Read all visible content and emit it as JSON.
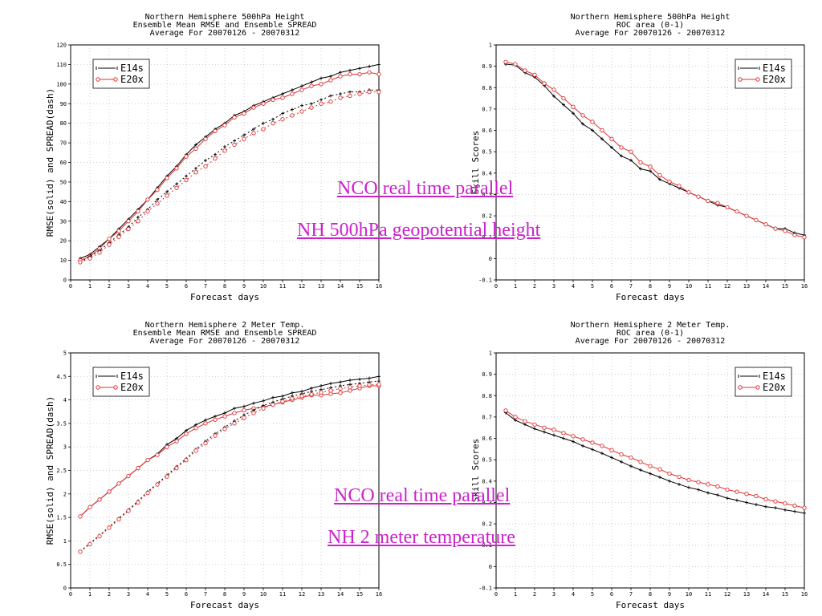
{
  "colors": {
    "e14s": "#000000",
    "e20x": "#e03030",
    "link": "#cc22cc",
    "grid": "#bbbbbb"
  },
  "overlays": {
    "top_line1": "NCO real time parallel",
    "top_line2": "NH 500hPa geopotential height",
    "bottom_line1": "NCO real time parallel",
    "bottom_line2": "NH 2 meter temperature"
  },
  "chart_data": [
    {
      "type": "line",
      "title": [
        "Northern Hemisphere 500hPa Height",
        "Ensemble Mean RMSE and Ensemble SPREAD",
        "Average For 20070126 - 20070312"
      ],
      "xlabel": "Forecast days",
      "ylabel": "RMSE(solid) and SPREAD(dash)",
      "xlim": [
        0,
        16
      ],
      "ylim": [
        0,
        120
      ],
      "xticks": [
        "0",
        "1",
        "2",
        "3",
        "4",
        "5",
        "6",
        "7",
        "8",
        "9",
        "10",
        "11",
        "12",
        "13",
        "14",
        "15",
        "16"
      ],
      "yticks": [
        "0",
        "10",
        "20",
        "30",
        "40",
        "50",
        "60",
        "70",
        "80",
        "90",
        "100",
        "110",
        "120"
      ],
      "grid": true,
      "legend_position": "top-left",
      "x": [
        0.5,
        1,
        1.5,
        2,
        2.5,
        3,
        3.5,
        4,
        4.5,
        5,
        5.5,
        6,
        6.5,
        7,
        7.5,
        8,
        8.5,
        9,
        9.5,
        10,
        10.5,
        11,
        11.5,
        12,
        12.5,
        13,
        13.5,
        14,
        14.5,
        15,
        15.5,
        16
      ],
      "series": [
        {
          "name": "E14s",
          "style": "solid",
          "values": [
            11,
            13,
            17,
            21,
            26,
            31,
            36,
            41,
            47,
            53,
            58,
            64,
            69,
            73,
            77,
            80,
            84,
            86,
            89,
            91,
            93,
            95,
            97,
            99,
            101,
            103,
            104,
            106,
            107,
            108,
            109,
            110
          ]
        },
        {
          "name": "E20x",
          "style": "solid",
          "values": [
            10,
            12,
            16,
            21,
            25,
            30,
            35,
            41,
            46,
            52,
            57,
            63,
            67,
            72,
            76,
            79,
            83,
            85,
            88,
            90,
            92,
            93,
            95,
            97,
            99,
            100,
            102,
            104,
            105,
            105,
            106,
            105
          ]
        },
        {
          "name": "",
          "style": "dash",
          "color_of": "E14s",
          "values": [
            9,
            12,
            15,
            19,
            23,
            27,
            32,
            36,
            41,
            45,
            49,
            53,
            57,
            61,
            64,
            68,
            71,
            74,
            77,
            80,
            82,
            85,
            87,
            89,
            90,
            92,
            94,
            95,
            96,
            96,
            97,
            97
          ]
        },
        {
          "name": "",
          "style": "dash",
          "color_of": "E20x",
          "values": [
            9,
            11,
            14,
            18,
            22,
            26,
            30,
            35,
            39,
            43,
            47,
            51,
            55,
            58,
            62,
            66,
            69,
            72,
            75,
            77,
            80,
            82,
            84,
            86,
            88,
            90,
            91,
            93,
            94,
            95,
            96,
            96
          ]
        }
      ]
    },
    {
      "type": "line",
      "title": [
        "Northern Hemisphere 500hPa Height",
        "ROC area (0-1)",
        "Average For 20070126 - 20070312"
      ],
      "xlabel": "Forecast days",
      "ylabel": "Skill Scores",
      "xlim": [
        0,
        16
      ],
      "ylim": [
        -0.1,
        1
      ],
      "xticks": [
        "0",
        "1",
        "2",
        "3",
        "4",
        "5",
        "6",
        "7",
        "8",
        "9",
        "10",
        "11",
        "12",
        "13",
        "14",
        "15",
        "16"
      ],
      "yticks": [
        "-0.1",
        "0",
        "0.1",
        "0.2",
        "0.3",
        "0.4",
        "0.5",
        "0.6",
        "0.7",
        "0.8",
        "0.9",
        "1"
      ],
      "grid": true,
      "legend_position": "top-right",
      "x": [
        0.5,
        1,
        1.5,
        2,
        2.5,
        3,
        3.5,
        4,
        4.5,
        5,
        5.5,
        6,
        6.5,
        7,
        7.5,
        8,
        8.5,
        9,
        9.5,
        10,
        10.5,
        11,
        11.5,
        12,
        12.5,
        13,
        13.5,
        14,
        14.5,
        15,
        15.5,
        16
      ],
      "series": [
        {
          "name": "E14s",
          "style": "solid",
          "values": [
            0.91,
            0.905,
            0.87,
            0.85,
            0.81,
            0.76,
            0.72,
            0.68,
            0.63,
            0.6,
            0.56,
            0.52,
            0.48,
            0.46,
            0.42,
            0.41,
            0.37,
            0.35,
            0.33,
            0.31,
            0.29,
            0.27,
            0.25,
            0.24,
            0.22,
            0.2,
            0.18,
            0.16,
            0.14,
            0.14,
            0.12,
            0.11
          ]
        },
        {
          "name": "E20x",
          "style": "solid",
          "values": [
            0.92,
            0.91,
            0.88,
            0.86,
            0.82,
            0.79,
            0.75,
            0.71,
            0.67,
            0.64,
            0.6,
            0.56,
            0.52,
            0.5,
            0.45,
            0.43,
            0.39,
            0.36,
            0.34,
            0.31,
            0.29,
            0.27,
            0.26,
            0.24,
            0.22,
            0.2,
            0.18,
            0.16,
            0.14,
            0.13,
            0.11,
            0.1
          ]
        }
      ]
    },
    {
      "type": "line",
      "title": [
        "Northern Hemisphere 2 Meter Temp.",
        "Ensemble Mean RMSE and Ensemble SPREAD",
        "Average For 20070126 - 20070312"
      ],
      "xlabel": "Forecast days",
      "ylabel": "RMSE(solid) and SPREAD(dash)",
      "xlim": [
        0,
        16
      ],
      "ylim": [
        0,
        5
      ],
      "xticks": [
        "0",
        "1",
        "2",
        "3",
        "4",
        "5",
        "6",
        "7",
        "8",
        "9",
        "10",
        "11",
        "12",
        "13",
        "14",
        "15",
        "16"
      ],
      "yticks": [
        "0",
        "0.5",
        "1",
        "1.5",
        "2",
        "2.5",
        "3",
        "3.5",
        "4",
        "4.5",
        "5"
      ],
      "grid": true,
      "legend_position": "top-left",
      "x": [
        0.5,
        1,
        1.5,
        2,
        2.5,
        3,
        3.5,
        4,
        4.5,
        5,
        5.5,
        6,
        6.5,
        7,
        7.5,
        8,
        8.5,
        9,
        9.5,
        10,
        10.5,
        11,
        11.5,
        12,
        12.5,
        13,
        13.5,
        14,
        14.5,
        15,
        15.5,
        16
      ],
      "series": [
        {
          "name": "E14s",
          "style": "solid",
          "values": [
            1.52,
            1.72,
            1.88,
            2.05,
            2.22,
            2.38,
            2.55,
            2.72,
            2.85,
            3.05,
            3.18,
            3.35,
            3.47,
            3.57,
            3.65,
            3.72,
            3.82,
            3.86,
            3.93,
            3.98,
            4.05,
            4.08,
            4.15,
            4.18,
            4.25,
            4.3,
            4.35,
            4.38,
            4.42,
            4.44,
            4.46,
            4.5
          ]
        },
        {
          "name": "E20x",
          "style": "solid",
          "values": [
            1.52,
            1.72,
            1.88,
            2.05,
            2.22,
            2.38,
            2.55,
            2.72,
            2.83,
            3.0,
            3.12,
            3.28,
            3.4,
            3.5,
            3.58,
            3.65,
            3.72,
            3.78,
            3.82,
            3.85,
            3.9,
            3.95,
            4.0,
            4.05,
            4.1,
            4.1,
            4.13,
            4.15,
            4.2,
            4.25,
            4.3,
            4.3
          ]
        },
        {
          "name": "",
          "style": "dash",
          "color_of": "E14s",
          "values": [
            0.78,
            0.95,
            1.12,
            1.3,
            1.48,
            1.66,
            1.85,
            2.05,
            2.22,
            2.4,
            2.58,
            2.75,
            2.95,
            3.12,
            3.28,
            3.42,
            3.55,
            3.68,
            3.78,
            3.88,
            3.95,
            4.02,
            4.08,
            4.13,
            4.18,
            4.22,
            4.26,
            4.3,
            4.33,
            4.35,
            4.38,
            4.4
          ]
        },
        {
          "name": "",
          "style": "dash",
          "color_of": "E20x",
          "values": [
            0.77,
            0.93,
            1.1,
            1.28,
            1.46,
            1.64,
            1.82,
            2.02,
            2.2,
            2.37,
            2.55,
            2.72,
            2.92,
            3.08,
            3.24,
            3.38,
            3.5,
            3.62,
            3.72,
            3.82,
            3.9,
            3.97,
            4.03,
            4.08,
            4.12,
            4.16,
            4.2,
            4.24,
            4.27,
            4.3,
            4.32,
            4.33
          ]
        }
      ]
    },
    {
      "type": "line",
      "title": [
        "Northern Hemisphere 2 Meter Temp.",
        "ROC area (0-1)",
        "Average For 20070126 - 20070312"
      ],
      "xlabel": "Forecast days",
      "ylabel": "Skill Scores",
      "xlim": [
        0,
        16
      ],
      "ylim": [
        -0.1,
        1
      ],
      "xticks": [
        "0",
        "1",
        "2",
        "3",
        "4",
        "5",
        "6",
        "7",
        "8",
        "9",
        "10",
        "11",
        "12",
        "13",
        "14",
        "15",
        "16"
      ],
      "yticks": [
        "-0.1",
        "0",
        "0.1",
        "0.2",
        "0.3",
        "0.4",
        "0.5",
        "0.6",
        "0.7",
        "0.8",
        "0.9",
        "1"
      ],
      "grid": true,
      "legend_position": "top-right",
      "x": [
        0.5,
        1,
        1.5,
        2,
        2.5,
        3,
        3.5,
        4,
        4.5,
        5,
        5.5,
        6,
        6.5,
        7,
        7.5,
        8,
        8.5,
        9,
        9.5,
        10,
        10.5,
        11,
        11.5,
        12,
        12.5,
        13,
        13.5,
        14,
        14.5,
        15,
        15.5,
        16
      ],
      "series": [
        {
          "name": "E14s",
          "style": "solid",
          "values": [
            0.72,
            0.685,
            0.665,
            0.645,
            0.63,
            0.615,
            0.6,
            0.585,
            0.565,
            0.548,
            0.53,
            0.51,
            0.49,
            0.47,
            0.452,
            0.435,
            0.418,
            0.4,
            0.385,
            0.37,
            0.36,
            0.345,
            0.335,
            0.32,
            0.31,
            0.3,
            0.29,
            0.28,
            0.275,
            0.265,
            0.258,
            0.25
          ]
        },
        {
          "name": "E20x",
          "style": "solid",
          "values": [
            0.73,
            0.7,
            0.68,
            0.665,
            0.65,
            0.64,
            0.625,
            0.61,
            0.595,
            0.58,
            0.565,
            0.545,
            0.525,
            0.51,
            0.49,
            0.47,
            0.455,
            0.435,
            0.42,
            0.405,
            0.395,
            0.385,
            0.375,
            0.36,
            0.35,
            0.34,
            0.33,
            0.315,
            0.305,
            0.295,
            0.285,
            0.275
          ]
        }
      ]
    }
  ]
}
